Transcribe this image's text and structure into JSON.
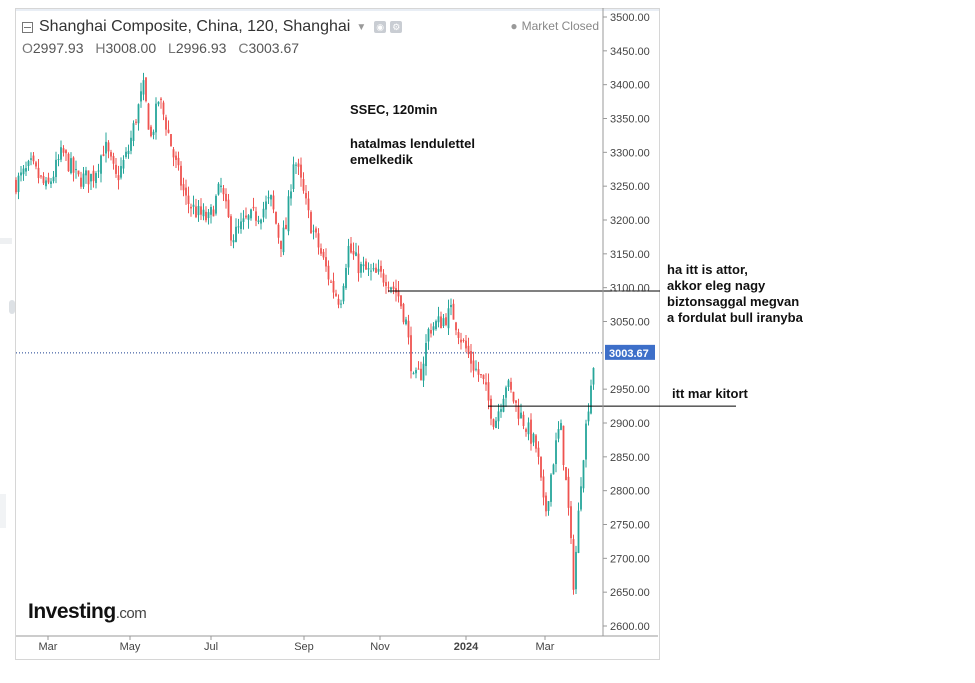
{
  "header": {
    "title": "Shanghai Composite, China, 120, Shanghai",
    "market_status": "Market Closed"
  },
  "ohlc": {
    "open_label": "O",
    "open": "2997.93",
    "high_label": "H",
    "high": "3008.00",
    "low_label": "L",
    "low": "2996.93",
    "close_label": "C",
    "close": "3003.67"
  },
  "annotations": {
    "title_note": "SSEC, 120min",
    "note_1_line_1": "hatalmas lendulettel",
    "note_1_line_2": "emelkedik",
    "note_2_line_1": "ha itt is attor,",
    "note_2_line_2": "akkor eleg nagy",
    "note_2_line_3": "biztonsaggal megvan",
    "note_2_line_4": "a fordulat bull iranyba",
    "note_3": "itt mar kitort"
  },
  "logo": {
    "main": "Investing",
    "suffix": ".com"
  },
  "colors": {
    "up": "#26a69a",
    "down": "#ef5350",
    "price_tag": "#3d6fc9",
    "grid": "#e6e6e6"
  },
  "chart_data": {
    "type": "candlestick",
    "x_tick_labels": [
      "Mar",
      "May",
      "Jul",
      "Sep",
      "Nov",
      "2024",
      "Mar"
    ],
    "y_tick_labels": [
      "3500.00",
      "3450.00",
      "3400.00",
      "3350.00",
      "3300.00",
      "3250.00",
      "3200.00",
      "3150.00",
      "3100.00",
      "3050.00",
      "3003.67",
      "2950.00",
      "2900.00",
      "2850.00",
      "2800.00",
      "2750.00",
      "2700.00",
      "2650.00",
      "2600.00"
    ],
    "ylim": [
      2583,
      3507
    ],
    "last_price": 3003.67,
    "resistance_level": 3095,
    "breakout_level": 2925,
    "close_path": [
      {
        "m": 0.0,
        "v": 3255
      },
      {
        "m": 0.4,
        "v": 3280
      },
      {
        "m": 0.8,
        "v": 3245
      },
      {
        "m": 1.2,
        "v": 3300
      },
      {
        "m": 1.6,
        "v": 3260
      },
      {
        "m": 2.0,
        "v": 3265
      },
      {
        "m": 2.3,
        "v": 3310
      },
      {
        "m": 2.6,
        "v": 3260
      },
      {
        "m": 2.9,
        "v": 3300
      },
      {
        "m": 3.1,
        "v": 3350
      },
      {
        "m": 3.3,
        "v": 3395
      },
      {
        "m": 3.5,
        "v": 3320
      },
      {
        "m": 3.7,
        "v": 3380
      },
      {
        "m": 3.9,
        "v": 3340
      },
      {
        "m": 4.1,
        "v": 3290
      },
      {
        "m": 4.4,
        "v": 3230
      },
      {
        "m": 4.7,
        "v": 3210
      },
      {
        "m": 5.0,
        "v": 3200
      },
      {
        "m": 5.3,
        "v": 3250
      },
      {
        "m": 5.6,
        "v": 3175
      },
      {
        "m": 6.0,
        "v": 3200
      },
      {
        "m": 6.3,
        "v": 3210
      },
      {
        "m": 6.6,
        "v": 3230
      },
      {
        "m": 6.85,
        "v": 3165
      },
      {
        "m": 7.0,
        "v": 3190
      },
      {
        "m": 7.2,
        "v": 3295
      },
      {
        "m": 7.4,
        "v": 3250
      },
      {
        "m": 7.6,
        "v": 3200
      },
      {
        "m": 7.9,
        "v": 3150
      },
      {
        "m": 8.2,
        "v": 3100
      },
      {
        "m": 8.4,
        "v": 3080
      },
      {
        "m": 8.6,
        "v": 3160
      },
      {
        "m": 8.9,
        "v": 3130
      },
      {
        "m": 9.2,
        "v": 3120
      },
      {
        "m": 9.6,
        "v": 3115
      },
      {
        "m": 9.9,
        "v": 3090
      },
      {
        "m": 10.1,
        "v": 3050
      },
      {
        "m": 10.3,
        "v": 2960
      },
      {
        "m": 10.5,
        "v": 2975
      },
      {
        "m": 10.7,
        "v": 3040
      },
      {
        "m": 11.0,
        "v": 3050
      },
      {
        "m": 11.3,
        "v": 3065
      },
      {
        "m": 11.5,
        "v": 3030
      },
      {
        "m": 11.8,
        "v": 2990
      },
      {
        "m": 12.1,
        "v": 2960
      },
      {
        "m": 12.4,
        "v": 2900
      },
      {
        "m": 12.7,
        "v": 2960
      },
      {
        "m": 13.0,
        "v": 2920
      },
      {
        "m": 13.3,
        "v": 2885
      },
      {
        "m": 13.5,
        "v": 2860
      },
      {
        "m": 13.7,
        "v": 2760
      },
      {
        "m": 13.9,
        "v": 2840
      },
      {
        "m": 14.1,
        "v": 2900
      },
      {
        "m": 14.3,
        "v": 2780
      },
      {
        "m": 14.45,
        "v": 2660
      },
      {
        "m": 14.65,
        "v": 2830
      },
      {
        "m": 14.85,
        "v": 2940
      },
      {
        "m": 15.0,
        "v": 3003.67
      }
    ]
  }
}
